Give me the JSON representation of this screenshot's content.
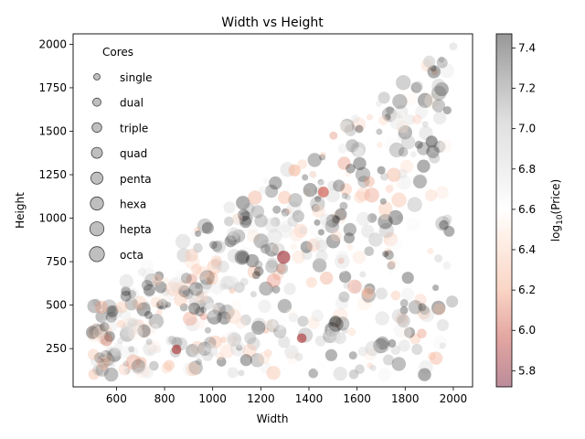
{
  "chart_data": {
    "type": "scatter",
    "title": "Width vs Height",
    "xlabel": "Width",
    "ylabel": "Height",
    "xlim": [
      420,
      2080
    ],
    "ylim": [
      30,
      2060
    ],
    "xticks": [
      600,
      800,
      1000,
      1200,
      1400,
      1600,
      1800,
      2000
    ],
    "yticks": [
      250,
      500,
      750,
      1000,
      1250,
      1500,
      1750,
      2000
    ],
    "grid": false,
    "size_legend": {
      "title": "Cores",
      "placement": "upper-left",
      "entries": [
        "single",
        "dual",
        "triple",
        "quad",
        "penta",
        "hexa",
        "hepta",
        "octa"
      ]
    },
    "colorbar": {
      "label": "log$_{10}$(Price)",
      "range": [
        5.72,
        7.47
      ],
      "ticks": [
        5.8,
        6.0,
        6.2,
        6.4,
        6.6,
        6.8,
        7.0,
        7.2,
        7.4
      ],
      "colormap": "RdGy (reversed)"
    },
    "points_note": "approx. 600 random points; Width 500-2000, Height 100-Width; size = cores, color = log10(Price)",
    "highlighted_points": [
      {
        "x": 1295,
        "y": 775,
        "cores": 6,
        "log_price": 5.85
      },
      {
        "x": 1910,
        "y": 1440,
        "cores": 5,
        "log_price": 7.3
      },
      {
        "x": 1900,
        "y": 1900,
        "cores": 5,
        "log_price": 6.9
      },
      {
        "x": 1650,
        "y": 810,
        "cores": 3,
        "log_price": 7.1
      },
      {
        "x": 850,
        "y": 245,
        "cores": 3,
        "log_price": 5.9
      },
      {
        "x": 1190,
        "y": 370,
        "cores": 7,
        "log_price": 7.2
      },
      {
        "x": 1370,
        "y": 310,
        "cores": 3,
        "log_price": 5.9
      },
      {
        "x": 1460,
        "y": 1150,
        "cores": 4,
        "log_price": 6.0
      },
      {
        "x": 1340,
        "y": 1275,
        "cores": 5,
        "log_price": 6.3
      }
    ]
  }
}
